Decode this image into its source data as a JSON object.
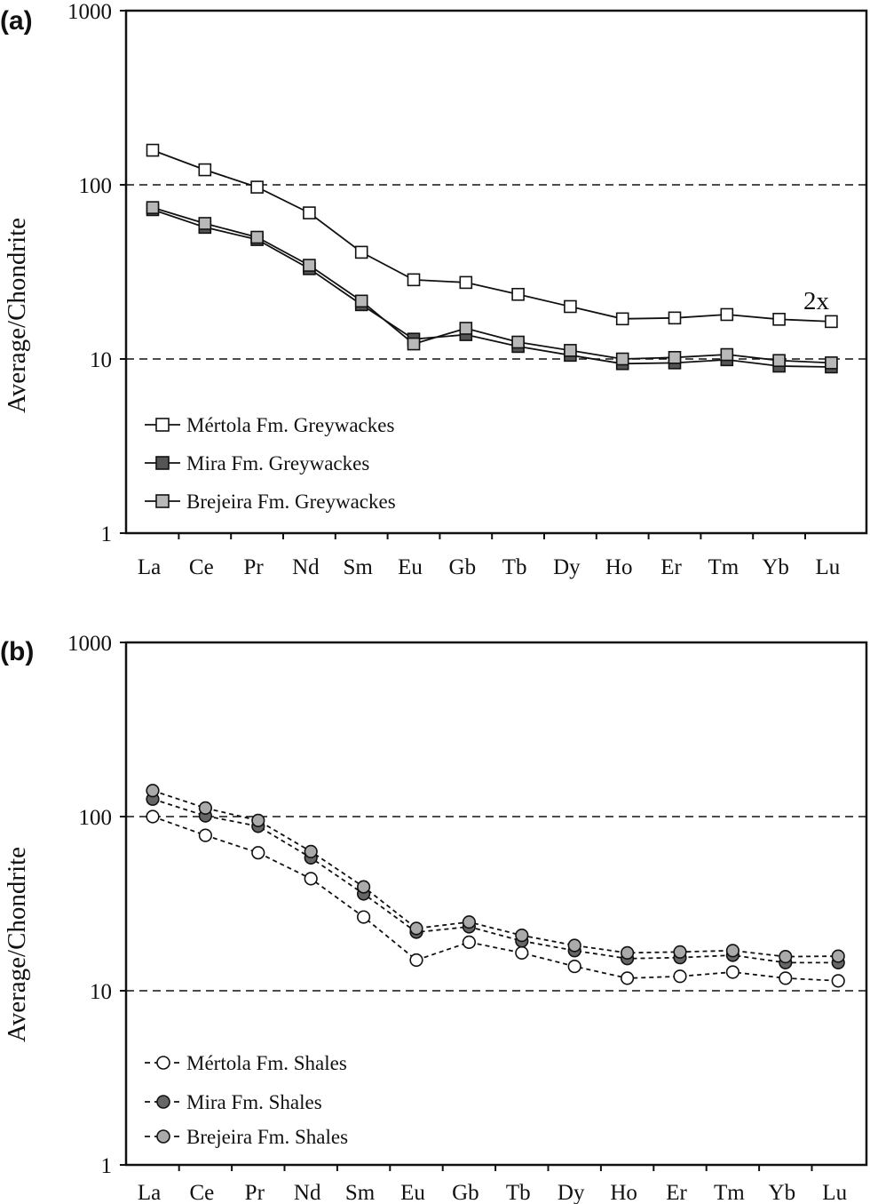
{
  "chart_data": [
    {
      "panel_label": "(a)",
      "type": "line",
      "yscale": "log",
      "ylim": [
        1,
        1000
      ],
      "yticks": [
        "1",
        "10",
        "100",
        "1000"
      ],
      "ylabel": "Average/Chondrite",
      "categories": [
        "La",
        "Ce",
        "Pr",
        "Nd",
        "Sm",
        "Eu",
        "Gb",
        "Tb",
        "Dy",
        "Ho",
        "Er",
        "Tm",
        "Yb",
        "Lu"
      ],
      "reference_lines": [
        10,
        100
      ],
      "annotation": "2x",
      "legend_position": "bottom-left",
      "series": [
        {
          "name": "Mértola Fm. Greywackes",
          "marker": "square",
          "fill": "#ffffff",
          "line": "solid",
          "values": [
            158,
            122,
            97,
            69,
            41,
            28.5,
            27.5,
            23.5,
            20,
            17,
            17.2,
            18,
            16.9,
            16.4
          ]
        },
        {
          "name": "Mira Fm. Greywackes",
          "marker": "square",
          "fill": "#555555",
          "line": "solid",
          "values": [
            72,
            57,
            48.5,
            33,
            20.5,
            13,
            13.8,
            11.8,
            10.5,
            9.4,
            9.5,
            9.9,
            9.1,
            9.0
          ]
        },
        {
          "name": "Brejeira Fm. Greywackes",
          "marker": "square",
          "fill": "#b8b8b8",
          "line": "solid",
          "values": [
            74,
            60,
            50,
            34.5,
            21.5,
            12.2,
            15,
            12.5,
            11.2,
            10,
            10.2,
            10.6,
            9.8,
            9.5
          ]
        }
      ]
    },
    {
      "panel_label": "(b)",
      "type": "line",
      "yscale": "log",
      "ylim": [
        1,
        1000
      ],
      "yticks": [
        "1",
        "10",
        "100",
        "1000"
      ],
      "ylabel": "Average/Chondrite",
      "categories": [
        "La",
        "Ce",
        "Pr",
        "Nd",
        "Sm",
        "Eu",
        "Gb",
        "Tb",
        "Dy",
        "Ho",
        "Er",
        "Tm",
        "Yb",
        "Lu"
      ],
      "reference_lines": [
        10,
        100
      ],
      "legend_position": "bottom-left",
      "series": [
        {
          "name": "Mértola Fm. Shales",
          "marker": "circle",
          "fill": "#ffffff",
          "line": "dashed",
          "values": [
            100,
            78,
            62,
            44,
            26.5,
            15,
            19,
            16.5,
            13.8,
            11.8,
            12.1,
            12.8,
            11.8,
            11.4
          ]
        },
        {
          "name": "Mira Fm. Shales",
          "marker": "circle",
          "fill": "#666666",
          "line": "dashed",
          "values": [
            126,
            101,
            88,
            58,
            36,
            21.7,
            23.3,
            19.3,
            17,
            15.3,
            15.5,
            16,
            14.5,
            14.5
          ]
        },
        {
          "name": "Brejeira Fm. Shales",
          "marker": "circle",
          "fill": "#aaaaaa",
          "line": "dashed",
          "values": [
            141,
            112,
            95,
            63,
            39.5,
            22.8,
            24.8,
            20.8,
            18.2,
            16.5,
            16.7,
            17,
            15.7,
            15.8
          ]
        }
      ]
    }
  ]
}
